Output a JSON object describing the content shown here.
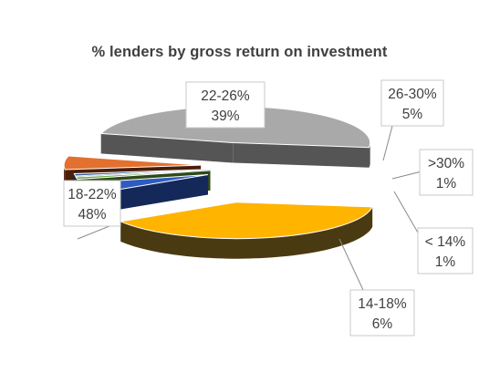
{
  "chart_data": {
    "type": "pie",
    "title": "% lenders by gross return on investment",
    "slices": [
      {
        "label": "22-26%",
        "value_label": "39%",
        "value": 39,
        "color": "#FFB400",
        "side_color": "#4A3A12"
      },
      {
        "label": "26-30%",
        "value_label": "5%",
        "value": 5,
        "color": "#2E5BC0",
        "side_color": "#14285A"
      },
      {
        "label": ">30%",
        "value_label": "1%",
        "value": 1,
        "color": "#68A83C",
        "side_color": "#2E4A1A"
      },
      {
        "label": "< 14%",
        "value_label": "1%",
        "value": 1,
        "color": "#2F5A9A",
        "side_color": "#152A48"
      },
      {
        "label": "14-18%",
        "value_label": "6%",
        "value": 6,
        "color": "#E2702E",
        "side_color": "#4A1E08"
      },
      {
        "label": "18-22%",
        "value_label": "48%",
        "value": 48,
        "color": "#A9A9A9",
        "side_color": "#555555"
      }
    ],
    "legend": "none",
    "style": "3d exploded pie with callout labels"
  }
}
